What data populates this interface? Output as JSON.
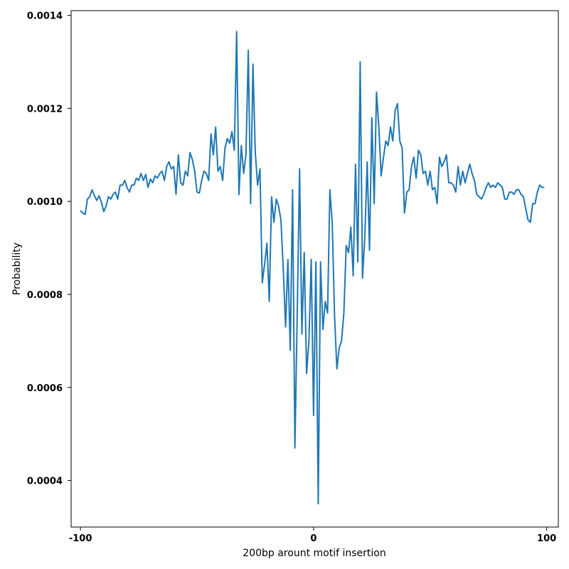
{
  "chart_data": {
    "type": "line",
    "title": "",
    "xlabel": "200bp arount motif insertion",
    "ylabel": "Probability",
    "xlim": [
      -104,
      105
    ],
    "ylim": [
      0.0003,
      0.00141
    ],
    "x_ticks": [
      -100,
      0,
      100
    ],
    "x_tick_labels": [
      "-100",
      "0",
      "100"
    ],
    "y_ticks": [
      0.0004,
      0.0006,
      0.0008,
      0.001,
      0.0012,
      0.0014
    ],
    "y_tick_labels": [
      "0.0004",
      "0.0006",
      "0.0008",
      "0.0010",
      "0.0012",
      "0.0014"
    ],
    "grid": false,
    "legend": "none",
    "series": [
      {
        "color": "#1f77b4",
        "x": [
          -100,
          -99,
          -98,
          -97,
          -96,
          -95,
          -94,
          -93,
          -92,
          -91,
          -90,
          -89,
          -88,
          -87,
          -86,
          -85,
          -84,
          -83,
          -82,
          -81,
          -80,
          -79,
          -78,
          -77,
          -76,
          -75,
          -74,
          -73,
          -72,
          -71,
          -70,
          -69,
          -68,
          -67,
          -66,
          -65,
          -64,
          -63,
          -62,
          -61,
          -60,
          -59,
          -58,
          -57,
          -56,
          -55,
          -54,
          -53,
          -52,
          -51,
          -50,
          -49,
          -48,
          -47,
          -46,
          -45,
          -44,
          -43,
          -42,
          -41,
          -40,
          -39,
          -38,
          -37,
          -36,
          -35,
          -34,
          -33,
          -32,
          -31,
          -30,
          -29,
          -28,
          -27,
          -26,
          -25,
          -24,
          -23,
          -22,
          -21,
          -20,
          -19,
          -18,
          -17,
          -16,
          -15,
          -14,
          -13,
          -12,
          -11,
          -10,
          -9,
          -8,
          -7,
          -6,
          -5,
          -4,
          -3,
          -2,
          -1,
          0,
          1,
          2,
          3,
          4,
          5,
          6,
          7,
          8,
          9,
          10,
          11,
          12,
          13,
          14,
          15,
          16,
          17,
          18,
          19,
          20,
          21,
          22,
          23,
          24,
          25,
          26,
          27,
          28,
          29,
          30,
          31,
          32,
          33,
          34,
          35,
          36,
          37,
          38,
          39,
          40,
          41,
          42,
          43,
          44,
          45,
          46,
          47,
          48,
          49,
          50,
          51,
          52,
          53,
          54,
          55,
          56,
          57,
          58,
          59,
          60,
          61,
          62,
          63,
          64,
          65,
          66,
          67,
          68,
          69,
          70,
          71,
          72,
          73,
          74,
          75,
          76,
          77,
          78,
          79,
          80,
          81,
          82,
          83,
          84,
          85,
          86,
          87,
          88,
          89,
          90,
          91,
          92,
          93,
          94,
          95,
          96,
          97,
          98,
          99
        ],
        "y": [
          0.00098,
          0.000975,
          0.000972,
          0.001005,
          0.00101,
          0.001025,
          0.001012,
          0.001002,
          0.001012,
          0.000998,
          0.000978,
          0.00099,
          0.00101,
          0.001005,
          0.001015,
          0.00102,
          0.001005,
          0.001035,
          0.001035,
          0.001045,
          0.00103,
          0.00102,
          0.001035,
          0.001035,
          0.00105,
          0.001045,
          0.00106,
          0.001045,
          0.001058,
          0.00103,
          0.001048,
          0.00104,
          0.001055,
          0.00105,
          0.00106,
          0.001065,
          0.001045,
          0.001075,
          0.001085,
          0.00107,
          0.001075,
          0.001015,
          0.0011,
          0.00104,
          0.001035,
          0.001065,
          0.001055,
          0.001105,
          0.00109,
          0.001065,
          0.00102,
          0.001018,
          0.001045,
          0.001065,
          0.00106,
          0.001045,
          0.001145,
          0.0011,
          0.00116,
          0.001065,
          0.001075,
          0.001045,
          0.001115,
          0.001135,
          0.001125,
          0.00115,
          0.00111,
          0.001365,
          0.001015,
          0.00112,
          0.00106,
          0.0011,
          0.001325,
          0.000995,
          0.001295,
          0.001105,
          0.001035,
          0.00107,
          0.000825,
          0.000865,
          0.00091,
          0.000785,
          0.00101,
          0.000955,
          0.001005,
          0.00099,
          0.00096,
          0.000855,
          0.00073,
          0.000875,
          0.00068,
          0.001025,
          0.00047,
          0.00076,
          0.00107,
          0.000715,
          0.00089,
          0.00063,
          0.0007,
          0.000875,
          0.00054,
          0.00087,
          0.00035,
          0.00087,
          0.000725,
          0.000785,
          0.00076,
          0.001025,
          0.000955,
          0.000755,
          0.00064,
          0.000685,
          0.0007,
          0.00076,
          0.000905,
          0.00089,
          0.000945,
          0.00084,
          0.00108,
          0.00087,
          0.0013,
          0.000835,
          0.000925,
          0.001085,
          0.000895,
          0.00118,
          0.000995,
          0.001235,
          0.00116,
          0.001055,
          0.001095,
          0.00113,
          0.00112,
          0.00116,
          0.00113,
          0.001195,
          0.00121,
          0.00113,
          0.001115,
          0.000975,
          0.00102,
          0.001025,
          0.001075,
          0.001095,
          0.00105,
          0.00111,
          0.0011,
          0.00106,
          0.001065,
          0.001035,
          0.001065,
          0.001025,
          0.00103,
          0.000995,
          0.001095,
          0.001075,
          0.001085,
          0.0011,
          0.00104,
          0.00104,
          0.001035,
          0.00102,
          0.001075,
          0.001035,
          0.001065,
          0.00104,
          0.00106,
          0.00108,
          0.00106,
          0.001045,
          0.001015,
          0.00101,
          0.001005,
          0.001015,
          0.00103,
          0.00104,
          0.00103,
          0.001035,
          0.00103,
          0.00104,
          0.001035,
          0.00103,
          0.001005,
          0.001005,
          0.00102,
          0.00102,
          0.001015,
          0.001025,
          0.001025,
          0.001015,
          0.00101,
          0.000985,
          0.00096,
          0.000955,
          0.000995,
          0.000995,
          0.00102,
          0.001035,
          0.00103,
          0.00103
        ]
      }
    ]
  }
}
